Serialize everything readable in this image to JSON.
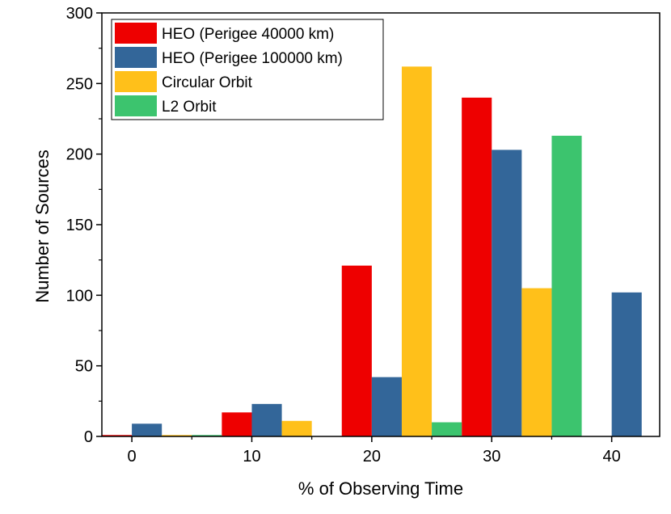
{
  "chart_data": {
    "type": "bar",
    "xlabel": "% of Observing Time",
    "ylabel": "Number of Sources",
    "xlim": [
      -2.5,
      44
    ],
    "ylim": [
      0,
      300
    ],
    "x_ticks": [
      0,
      10,
      20,
      30,
      40
    ],
    "y_ticks": [
      0,
      50,
      100,
      150,
      200,
      250,
      300
    ],
    "bin_width": 10,
    "bin_starts": [
      -2.5,
      7.5,
      17.5,
      27.5,
      37.5
    ],
    "legend_position": "top-left",
    "series": [
      {
        "name": "HEO (Perigee 40000 km)",
        "color": "#EE0000",
        "values": [
          1,
          17,
          121,
          240,
          0
        ]
      },
      {
        "name": "HEO (Perigee 100000 km)",
        "color": "#336699",
        "values": [
          9,
          23,
          42,
          203,
          102
        ]
      },
      {
        "name": "Circular Orbit",
        "color": "#FFC01A",
        "values": [
          1,
          11,
          262,
          105,
          0
        ]
      },
      {
        "name": "L2 Orbit",
        "color": "#3CC46E",
        "values": [
          1,
          0,
          10,
          213,
          0
        ]
      }
    ]
  }
}
